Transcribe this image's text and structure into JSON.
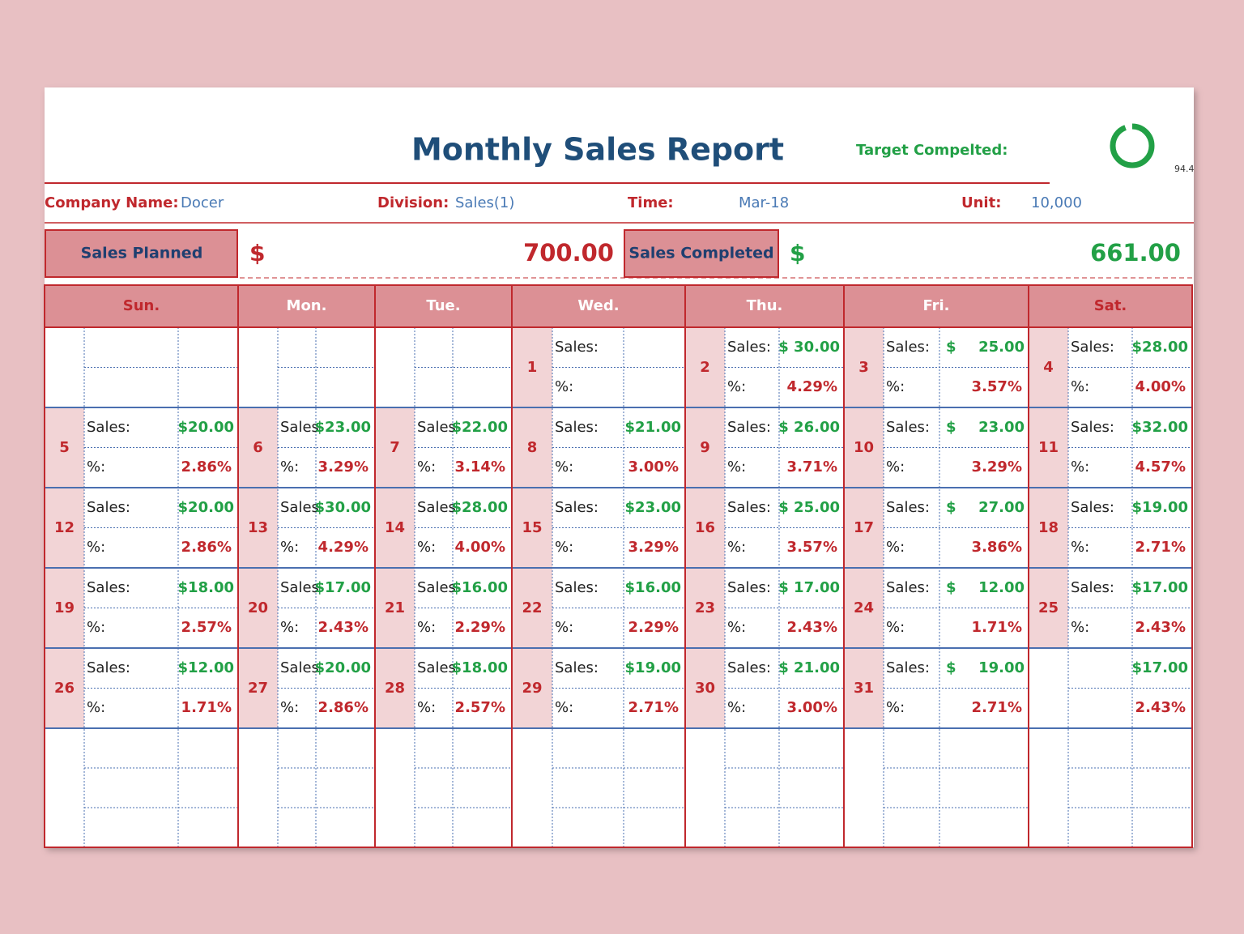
{
  "header": {
    "title": "Monthly Sales Report",
    "target_label": "Target Compelted:",
    "target_value": "94.4"
  },
  "info": {
    "company_label": "Company Name:",
    "company": "Docer",
    "division_label": "Division:",
    "division": "Sales(1)",
    "time_label": "Time:",
    "time": "Mar-18",
    "unit_label": "Unit:",
    "unit": "10,000"
  },
  "summary": {
    "planned_label": "Sales Planned",
    "planned_currency": "$",
    "planned": "700.00",
    "completed_label": "Sales Completed",
    "completed_currency": "$",
    "completed": "661.00"
  },
  "calendar": {
    "weekdays": [
      "Sun.",
      "Mon.",
      "Tue.",
      "Wed.",
      "Thu.",
      "Fri.",
      "Sat."
    ],
    "weeks": [
      [
        null,
        null,
        null,
        {
          "day": 1,
          "sales_label": "Sales:",
          "pct_label": "%:"
        },
        {
          "day": 2,
          "sales_label": "Sales:",
          "sales": "$ 30.00",
          "pct_label": "%:",
          "pct": "4.29%"
        },
        {
          "day": 3,
          "sales_label": "Sales:",
          "currency": "$",
          "sales": "25.00",
          "pct_label": "%:",
          "pct": "3.57%"
        },
        {
          "day": 4,
          "sales_label": "Sales:",
          "sales": "$28.00",
          "pct_label": "%:",
          "pct": "4.00%"
        }
      ],
      [
        {
          "day": 5,
          "sales_label": "Sales:",
          "sales": "$20.00",
          "pct_label": "%:",
          "pct": "2.86%"
        },
        {
          "day": 6,
          "sales_label": "Sales",
          "sales": "$23.00",
          "pct_label": "%:",
          "pct": "3.29%"
        },
        {
          "day": 7,
          "sales_label": "Sales",
          "sales": "$22.00",
          "pct_label": "%:",
          "pct": "3.14%"
        },
        {
          "day": 8,
          "sales_label": "Sales:",
          "sales": "$21.00",
          "pct_label": "%:",
          "pct": "3.00%"
        },
        {
          "day": 9,
          "sales_label": "Sales:",
          "sales": "$ 26.00",
          "pct_label": "%:",
          "pct": "3.71%"
        },
        {
          "day": 10,
          "sales_label": "Sales:",
          "currency": "$",
          "sales": "23.00",
          "pct_label": "%:",
          "pct": "3.29%"
        },
        {
          "day": 11,
          "sales_label": "Sales:",
          "sales": "$32.00",
          "pct_label": "%:",
          "pct": "4.57%"
        }
      ],
      [
        {
          "day": 12,
          "sales_label": "Sales:",
          "sales": "$20.00",
          "pct_label": "%:",
          "pct": "2.86%"
        },
        {
          "day": 13,
          "sales_label": "Sales",
          "sales": "$30.00",
          "pct_label": "%:",
          "pct": "4.29%"
        },
        {
          "day": 14,
          "sales_label": "Sales",
          "sales": "$28.00",
          "pct_label": "%:",
          "pct": "4.00%"
        },
        {
          "day": 15,
          "sales_label": "Sales:",
          "sales": "$23.00",
          "pct_label": "%:",
          "pct": "3.29%"
        },
        {
          "day": 16,
          "sales_label": "Sales:",
          "sales": "$ 25.00",
          "pct_label": "%:",
          "pct": "3.57%"
        },
        {
          "day": 17,
          "sales_label": "Sales:",
          "currency": "$",
          "sales": "27.00",
          "pct_label": "%:",
          "pct": "3.86%"
        },
        {
          "day": 18,
          "sales_label": "Sales:",
          "sales": "$19.00",
          "pct_label": "%:",
          "pct": "2.71%"
        }
      ],
      [
        {
          "day": 19,
          "sales_label": "Sales:",
          "sales": "$18.00",
          "pct_label": "%:",
          "pct": "2.57%"
        },
        {
          "day": 20,
          "sales_label": "Sales",
          "sales": "$17.00",
          "pct_label": "%:",
          "pct": "2.43%"
        },
        {
          "day": 21,
          "sales_label": "Sales",
          "sales": "$16.00",
          "pct_label": "%:",
          "pct": "2.29%"
        },
        {
          "day": 22,
          "sales_label": "Sales:",
          "sales": "$16.00",
          "pct_label": "%:",
          "pct": "2.29%"
        },
        {
          "day": 23,
          "sales_label": "Sales:",
          "sales": "$ 17.00",
          "pct_label": "%:",
          "pct": "2.43%"
        },
        {
          "day": 24,
          "sales_label": "Sales:",
          "currency": "$",
          "sales": "12.00",
          "pct_label": "%:",
          "pct": "1.71%"
        },
        {
          "day": 25,
          "sales_label": "Sales:",
          "sales": "$17.00",
          "pct_label": "%:",
          "pct": "2.43%"
        }
      ],
      [
        {
          "day": 26,
          "sales_label": "Sales:",
          "sales": "$12.00",
          "pct_label": "%:",
          "pct": "1.71%"
        },
        {
          "day": 27,
          "sales_label": "Sales",
          "sales": "$20.00",
          "pct_label": "%:",
          "pct": "2.86%"
        },
        {
          "day": 28,
          "sales_label": "Sales",
          "sales": "$18.00",
          "pct_label": "%:",
          "pct": "2.57%"
        },
        {
          "day": 29,
          "sales_label": "Sales:",
          "sales": "$19.00",
          "pct_label": "%:",
          "pct": "2.71%"
        },
        {
          "day": 30,
          "sales_label": "Sales:",
          "sales": "$ 21.00",
          "pct_label": "%:",
          "pct": "3.00%"
        },
        {
          "day": 31,
          "sales_label": "Sales:",
          "currency": "$",
          "sales": "19.00",
          "pct_label": "%:",
          "pct": "2.71%"
        },
        {
          "sales": "$17.00",
          "pct": "2.43%"
        }
      ]
    ]
  }
}
